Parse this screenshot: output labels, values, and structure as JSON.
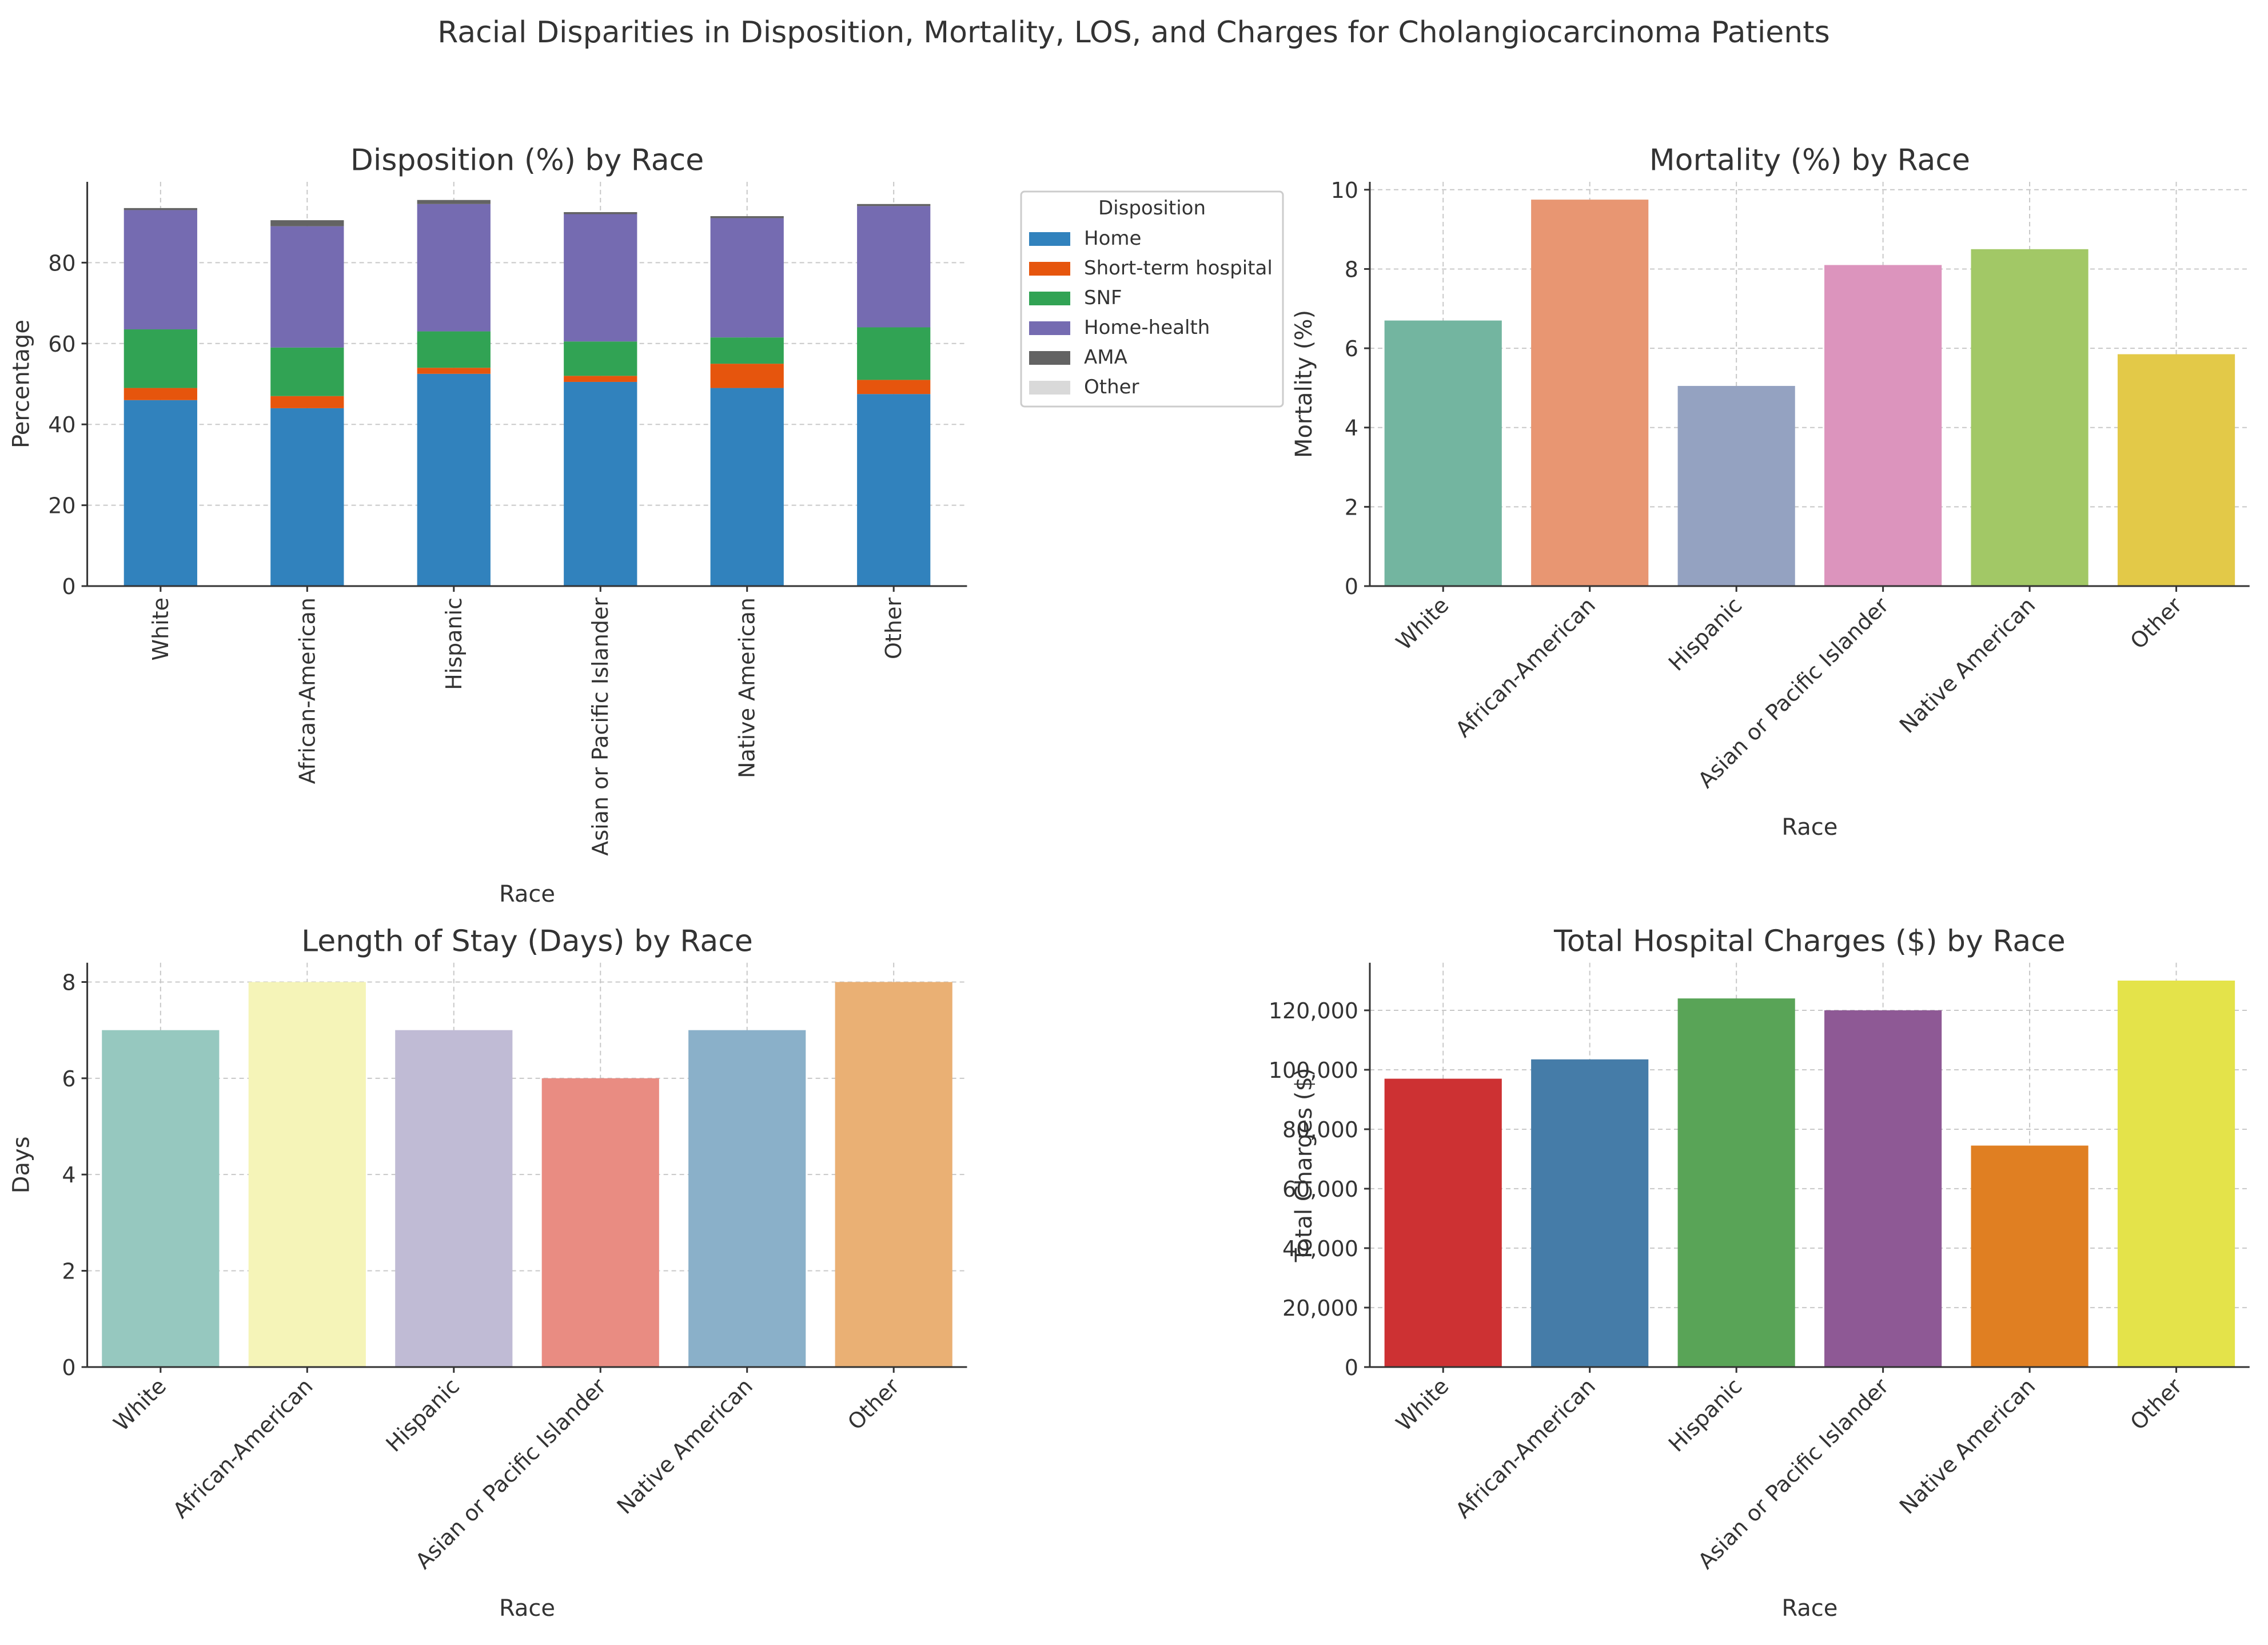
{
  "figure": {
    "title": "Racial Disparities in Disposition, Mortality, LOS, and Charges for Cholangiocarcinoma Patients"
  },
  "chart_data": [
    {
      "type": "bar",
      "stacked": true,
      "title": "Disposition (%) by Race",
      "xlabel": "Race",
      "ylabel": "Percentage",
      "ylim": [
        0,
        100
      ],
      "yticks": [
        0,
        20,
        40,
        60,
        80
      ],
      "categories": [
        "White",
        "African-American",
        "Hispanic",
        "Asian or Pacific Islander",
        "Native American",
        "Other"
      ],
      "tick_rotation": 90,
      "grid": true,
      "legend": {
        "title": "Disposition",
        "placement": "outside-right"
      },
      "series": [
        {
          "name": "Home",
          "color": "#3182bd",
          "values": [
            46.0,
            44.0,
            52.5,
            50.5,
            49.0,
            47.5
          ]
        },
        {
          "name": "Short-term hospital",
          "color": "#e6550d",
          "values": [
            3.0,
            3.0,
            1.5,
            1.5,
            6.0,
            3.5
          ]
        },
        {
          "name": "SNF",
          "color": "#31a354",
          "values": [
            14.5,
            12.0,
            9.0,
            8.5,
            6.5,
            13.0
          ]
        },
        {
          "name": "Home-health",
          "color": "#756bb1",
          "values": [
            29.5,
            30.0,
            31.5,
            31.5,
            29.5,
            30.0
          ]
        },
        {
          "name": "AMA",
          "color": "#636363",
          "values": [
            0.5,
            1.5,
            1.0,
            0.5,
            0.5,
            0.5
          ]
        },
        {
          "name": "Other",
          "color": "#d9d9d9",
          "values": [
            0,
            0,
            0,
            0,
            0,
            0
          ]
        }
      ]
    },
    {
      "type": "bar",
      "title": "Mortality (%) by Race",
      "xlabel": "Race",
      "ylabel": "Mortality (%)",
      "ylim": [
        0,
        10.2
      ],
      "yticks": [
        0,
        2,
        4,
        6,
        8,
        10
      ],
      "categories": [
        "White",
        "African-American",
        "Hispanic",
        "Asian or Pacific Islander",
        "Native American",
        "Other"
      ],
      "values": [
        6.7,
        9.75,
        5.05,
        8.1,
        8.5,
        5.85
      ],
      "colors": [
        "#73b5a0",
        "#e89672",
        "#94a2c1",
        "#dc94bd",
        "#a2c866",
        "#e3c948"
      ],
      "tick_rotation": 45,
      "grid": true
    },
    {
      "type": "bar",
      "title": "Length of Stay (Days) by Race",
      "xlabel": "Race",
      "ylabel": "Days",
      "ylim": [
        0,
        8.4
      ],
      "yticks": [
        0,
        2,
        4,
        6,
        8
      ],
      "categories": [
        "White",
        "African-American",
        "Hispanic",
        "Asian or Pacific Islander",
        "Native American",
        "Other"
      ],
      "values": [
        7,
        8,
        7,
        6,
        7,
        8
      ],
      "colors": [
        "#96c8bf",
        "#f5f4b8",
        "#c0bbd5",
        "#e98c82",
        "#8ab0c9",
        "#eab074"
      ],
      "tick_rotation": 45,
      "grid": true
    },
    {
      "type": "bar",
      "title": "Total Hospital Charges ($) by Race",
      "xlabel": "Race",
      "ylabel": "Total Charges ($)",
      "ylim": [
        0,
        136000
      ],
      "yticks": [
        0,
        20000,
        40000,
        60000,
        80000,
        100000,
        120000
      ],
      "yticklabels": [
        "0",
        "20,000",
        "40,000",
        "60,000",
        "80,000",
        "100,000",
        "120,000"
      ],
      "categories": [
        "White",
        "African-American",
        "Hispanic",
        "Asian or Pacific Islander",
        "Native American",
        "Other"
      ],
      "values": [
        97000,
        103500,
        124000,
        120000,
        74500,
        130000
      ],
      "colors": [
        "#cd3133",
        "#457ca8",
        "#59a457",
        "#8e5995",
        "#e07f22",
        "#e4e34a"
      ],
      "tick_rotation": 45,
      "grid": true
    }
  ]
}
